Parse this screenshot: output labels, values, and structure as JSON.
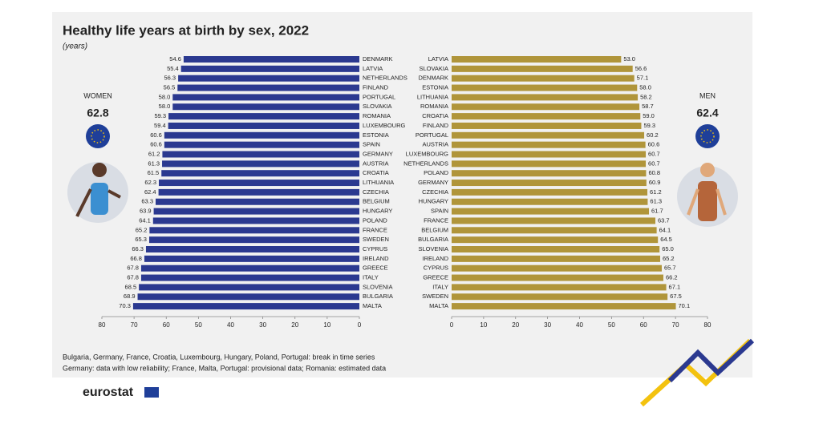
{
  "title": "Healthy life years at birth by sex, 2022",
  "subtitle": "(years)",
  "notes": [
    "Bulgaria, Germany, France, Croatia, Luxembourg, Hungary, Poland, Portugal: break in time series",
    "Germany: data with low reliability; France, Malta, Portugal: provisional data; Romania: estimated data"
  ],
  "logo": "eurostat",
  "chart_data": [
    {
      "type": "bar",
      "label": "WOMEN",
      "average": 62.8,
      "color": "#2b3990",
      "categories": [
        "DENMARK",
        "LATVIA",
        "NETHERLANDS",
        "FINLAND",
        "PORTUGAL",
        "SLOVAKIA",
        "ROMANIA",
        "LUXEMBOURG",
        "ESTONIA",
        "SPAIN",
        "GERMANY",
        "AUSTRIA",
        "CROATIA",
        "LITHUANIA",
        "CZECHIA",
        "BELGIUM",
        "HUNGARY",
        "POLAND",
        "FRANCE",
        "SWEDEN",
        "CYPRUS",
        "IRELAND",
        "GREECE",
        "ITALY",
        "SLOVENIA",
        "BULGARIA",
        "MALTA"
      ],
      "values": [
        54.6,
        55.4,
        56.3,
        56.5,
        58.0,
        58.0,
        59.3,
        59.4,
        60.6,
        60.6,
        61.2,
        61.3,
        61.5,
        62.3,
        62.4,
        63.3,
        63.9,
        64.1,
        65.2,
        65.3,
        66.3,
        66.8,
        67.8,
        67.8,
        68.5,
        68.9,
        70.3
      ],
      "value_labels": [
        "54.6",
        "55.4",
        "56.3",
        "56.5",
        "58.0",
        "58.0",
        "59.3",
        "59.4",
        "60.6",
        "60.6",
        "61.2",
        "61.3",
        "61.5",
        "62.3",
        "62.4",
        "63.3",
        "63.9",
        "64.1",
        "65.2",
        "65.3",
        "66.3",
        "66.8",
        "67.8",
        "67.8",
        "68.5",
        "68.9",
        "70.3"
      ],
      "xlim": [
        80,
        0
      ],
      "xticks": [
        80,
        70,
        60,
        50,
        40,
        30,
        20,
        10,
        0
      ]
    },
    {
      "type": "bar",
      "label": "MEN",
      "average": 62.4,
      "color": "#b0953a",
      "categories": [
        "LATVIA",
        "SLOVAKIA",
        "DENMARK",
        "ESTONIA",
        "LITHUANIA",
        "ROMANIA",
        "CROATIA",
        "FINLAND",
        "PORTUGAL",
        "AUSTRIA",
        "LUXEMBOURG",
        "NETHERLANDS",
        "POLAND",
        "GERMANY",
        "CZECHIA",
        "HUNGARY",
        "SPAIN",
        "FRANCE",
        "BELGIUM",
        "BULGARIA",
        "SLOVENIA",
        "IRELAND",
        "CYPRUS",
        "GREECE",
        "ITALY",
        "SWEDEN",
        "MALTA"
      ],
      "values": [
        53.0,
        56.6,
        57.1,
        58.0,
        58.2,
        58.7,
        59.0,
        59.3,
        60.2,
        60.6,
        60.7,
        60.7,
        60.8,
        60.9,
        61.2,
        61.3,
        61.7,
        63.7,
        64.1,
        64.5,
        65.0,
        65.2,
        65.7,
        66.2,
        67.1,
        67.5,
        70.1
      ],
      "value_labels": [
        "53.0",
        "56.6",
        "57.1",
        "58.0",
        "58.2",
        "58.7",
        "59.0",
        "59.3",
        "60.2",
        "60.6",
        "60.7",
        "60.7",
        "60.8",
        "60.9",
        "61.2",
        "61.3",
        "61.7",
        "63.7",
        "64.1",
        "64.5",
        "65.0",
        "65.2",
        "65.7",
        "66.2",
        "67.1",
        "67.5",
        "70.1"
      ],
      "xlim": [
        0,
        80
      ],
      "xticks": [
        0,
        10,
        20,
        30,
        40,
        50,
        60,
        70,
        80
      ]
    }
  ]
}
